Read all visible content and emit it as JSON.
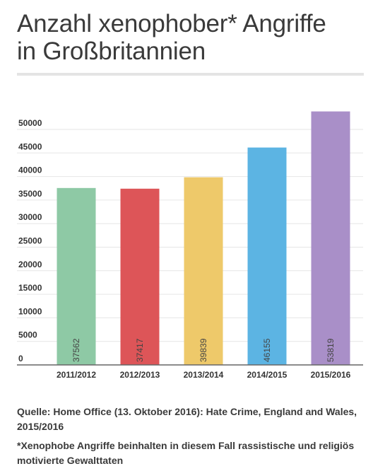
{
  "title": {
    "line1": "Anzahl xenophober* Angriffe",
    "line2": "in Großbritannien"
  },
  "source": "Quelle: Home Office (13. Oktober 2016): Hate Crime, England and Wales, 2015/2016",
  "footnote": "*Xenophobe Angriffe beinhalten in diesem Fall rassistische und religiös motivierte Gewalttaten",
  "chart_data": {
    "type": "bar",
    "categories": [
      "2011/2012",
      "2012/2013",
      "2013/2014",
      "2014/2015",
      "2015/2016"
    ],
    "values": [
      37562,
      37417,
      39839,
      46155,
      53819
    ],
    "colors": [
      "#8ec9a5",
      "#dd5558",
      "#eec96a",
      "#5cb4e3",
      "#a98fc8"
    ],
    "data_labels": [
      "37562",
      "37417",
      "39839",
      "46155",
      "53819"
    ],
    "yticks": [
      0,
      5000,
      10000,
      15000,
      20000,
      25000,
      30000,
      35000,
      40000,
      45000,
      50000
    ],
    "ytick_labels": [
      "0",
      "5000",
      "10000",
      "15000",
      "20000",
      "25000",
      "30000",
      "35000",
      "40000",
      "45000",
      "50000"
    ],
    "ylim": [
      0,
      55000
    ],
    "grid": true,
    "legend": "none",
    "data_label_placement": "inside-bottom-rotated"
  }
}
